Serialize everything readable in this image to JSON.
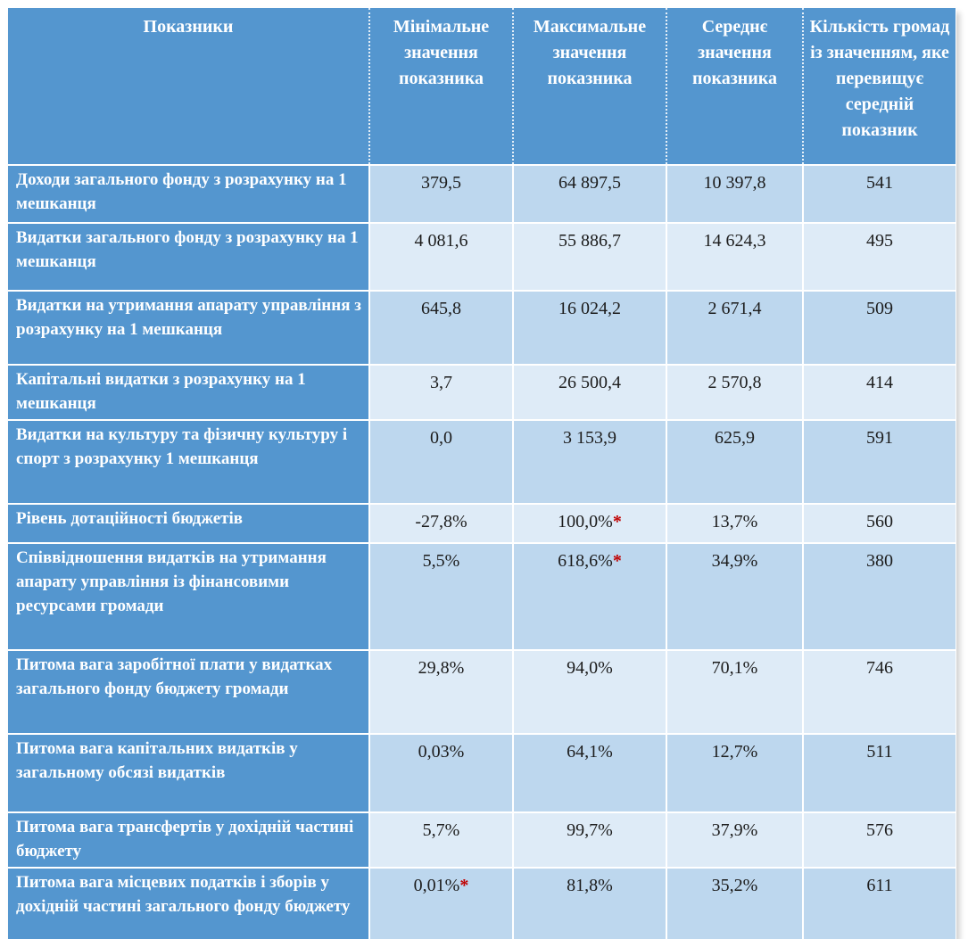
{
  "colors": {
    "table_blue": "#5496CF",
    "band_dark": "#BDD7EE",
    "band_light": "#DEEBF7",
    "header_text": "#FFFFFF",
    "data_text": "#1C1C1C",
    "asterisk_red": "#C00000",
    "page_bg": "#FFFFFF"
  },
  "table": {
    "columns": [
      "Показники",
      "Мінімальне значення показника",
      "Максимальне значення показника",
      "Середнє значення показника",
      "Кількість громад із значенням, яке перевищує середній показник"
    ],
    "rows": [
      {
        "indicator": "Доходи загального фонду з розрахунку на 1 мешканця",
        "min": "379,5",
        "min_note": "",
        "max": "64 897,5",
        "max_note": "",
        "avg": "10 397,8",
        "count": "541"
      },
      {
        "indicator": "Видатки загального фонду з розрахунку на 1 мешканця",
        "min": "4 081,6",
        "min_note": "",
        "max": "55 886,7",
        "max_note": "",
        "avg": "14 624,3",
        "count": "495"
      },
      {
        "indicator": "Видатки на утримання апарату управління з розрахунку на 1 мешканця",
        "min": "645,8",
        "min_note": "",
        "max": "16 024,2",
        "max_note": "",
        "avg": "2 671,4",
        "count": "509"
      },
      {
        "indicator": "Капітальні видатки з розрахунку на 1 мешканця",
        "min": "3,7",
        "min_note": "",
        "max": "26 500,4",
        "max_note": "",
        "avg": "2 570,8",
        "count": "414"
      },
      {
        "indicator": "Видатки на культуру та фізичну культуру і спорт з розрахунку 1 мешканця",
        "min": "0,0",
        "min_note": "",
        "max": "3 153,9",
        "max_note": "",
        "avg": "625,9",
        "count": "591"
      },
      {
        "indicator": "Рівень дотаційності бюджетів",
        "min": "-27,8%",
        "min_note": "",
        "max": "100,0%",
        "max_note": "*",
        "avg": "13,7%",
        "count": "560"
      },
      {
        "indicator": "Співвідношення видатків на утримання апарату управління із фінансовими ресурсами громади",
        "min": "5,5%",
        "min_note": "",
        "max": "618,6%",
        "max_note": "*",
        "avg": "34,9%",
        "count": "380"
      },
      {
        "indicator": "Питома вага заробітної плати у видатках загального фонду бюджету громади",
        "min": "29,8%",
        "min_note": "",
        "max": "94,0%",
        "max_note": "",
        "avg": "70,1%",
        "count": "746"
      },
      {
        "indicator": "Питома вага капітальних видатків у загальному обсязі видатків",
        "min": "0,03%",
        "min_note": "",
        "max": "64,1%",
        "max_note": "",
        "avg": "12,7%",
        "count": "511"
      },
      {
        "indicator": "Питома вага трансфертів у дохідній частині бюджету",
        "min": "5,7%",
        "min_note": "",
        "max": "99,7%",
        "max_note": "",
        "avg": "37,9%",
        "count": "576"
      },
      {
        "indicator": "Питома вага місцевих податків і зборів у дохідній частині загального фонду бюджету",
        "min": "0,01%",
        "min_note": "*",
        "max": "81,8%",
        "max_note": "",
        "avg": "35,2%",
        "count": "611"
      }
    ]
  }
}
